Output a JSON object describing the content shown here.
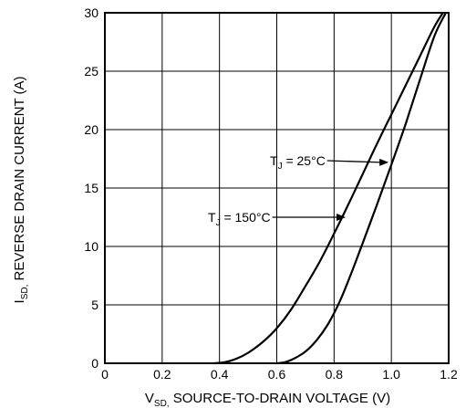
{
  "chart_data": {
    "type": "line",
    "xlabel": {
      "prefix": "V",
      "sub": "SD,",
      "rest": " SOURCE-TO-DRAIN VOLTAGE (V)"
    },
    "ylabel": {
      "prefix": "I",
      "sub": "SD,",
      "rest": " REVERSE DRAIN CURRENT (A)"
    },
    "xlim": [
      0,
      1.2
    ],
    "ylim": [
      0,
      30
    ],
    "x_ticks": [
      0,
      0.2,
      0.4,
      0.6,
      0.8,
      1.0,
      1.2
    ],
    "x_tick_labels": [
      "0",
      "0.2",
      "0.4",
      "0.6",
      "0.8",
      "1.0",
      "1.2"
    ],
    "y_ticks": [
      0,
      5,
      10,
      15,
      20,
      25,
      30
    ],
    "y_tick_labels": [
      "0",
      "5",
      "10",
      "15",
      "20",
      "25",
      "30"
    ],
    "grid": true,
    "series": [
      {
        "key": "tj150",
        "x": [
          0.38,
          0.42,
          0.46,
          0.5,
          0.55,
          0.6,
          0.65,
          0.7,
          0.75,
          0.8,
          0.85,
          0.9,
          0.95,
          1.0,
          1.05,
          1.1,
          1.15,
          1.18
        ],
        "y": [
          0,
          0.1,
          0.4,
          0.9,
          1.8,
          3.0,
          4.6,
          6.6,
          8.7,
          11.1,
          13.6,
          16.2,
          18.8,
          21.3,
          23.8,
          26.3,
          28.8,
          30
        ]
      },
      {
        "key": "tj25",
        "x": [
          0.6,
          0.63,
          0.66,
          0.7,
          0.74,
          0.78,
          0.82,
          0.86,
          0.9,
          0.95,
          1.0,
          1.05,
          1.1,
          1.15,
          1.19
        ],
        "y": [
          0,
          0.1,
          0.4,
          1.0,
          2.0,
          3.4,
          5.3,
          7.7,
          10.3,
          13.6,
          17.0,
          20.5,
          24.3,
          28.0,
          30
        ]
      }
    ],
    "annotations": [
      {
        "series": "tj25",
        "main": "T",
        "sub": "J",
        "rest": " = 25°C",
        "arrow_to": [
          1.0,
          17.2
        ]
      },
      {
        "series": "tj150",
        "main": "T",
        "sub": "J",
        "rest": " = 150°C",
        "arrow_to": [
          0.85,
          12.5
        ]
      }
    ]
  }
}
